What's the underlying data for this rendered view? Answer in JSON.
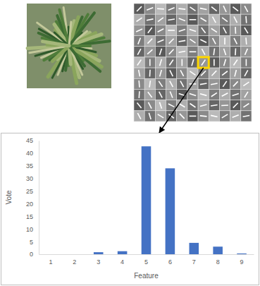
{
  "chart_data": {
    "type": "bar",
    "categories": [
      "1",
      "2",
      "3",
      "4",
      "5",
      "6",
      "7",
      "8",
      "9"
    ],
    "values": [
      0,
      0,
      0.8,
      1.2,
      42.7,
      34,
      4.5,
      3,
      0.3
    ],
    "color": "#4472c4",
    "x_label": "Feature",
    "y_label": "Vote",
    "ylim": [
      0,
      45
    ],
    "yticks": [
      0,
      5,
      10,
      15,
      20,
      25,
      30,
      35,
      40,
      45
    ],
    "grid": false
  }
}
